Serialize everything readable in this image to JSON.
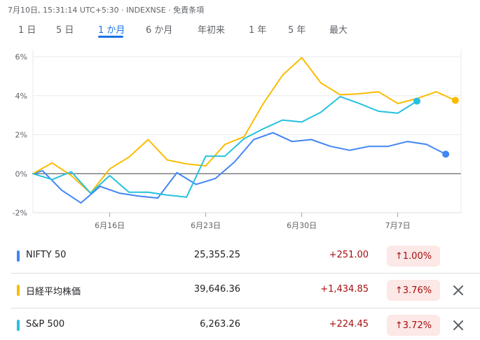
{
  "header": {
    "timestamp": "7月10日, 15:31:14 UTC+5:30 · INDEXNSE · 免責条項"
  },
  "tabs": [
    {
      "label": "1 日",
      "active": false
    },
    {
      "label": "5 日",
      "active": false
    },
    {
      "label": "1 か月",
      "active": true
    },
    {
      "label": "6 か月",
      "active": false
    },
    {
      "label": "年初来",
      "active": false
    },
    {
      "label": "1 年",
      "active": false
    },
    {
      "label": "5 年",
      "active": false
    },
    {
      "label": "最大",
      "active": false
    }
  ],
  "chart_data": {
    "type": "line",
    "ylabel_unit": "%",
    "y_ticks": [
      "6%",
      "4%",
      "2%",
      "0%",
      "-2%"
    ],
    "y_tick_values": [
      6,
      4,
      2,
      0,
      -2
    ],
    "ylim": [
      -2,
      6
    ],
    "x_ticks": [
      "6月16日",
      "6月23日",
      "6月30日",
      "7月7日"
    ],
    "x_tick_index": [
      4,
      9,
      14,
      19
    ],
    "grid": true,
    "zero_line": true,
    "series": [
      {
        "name": "NIFTY 50",
        "color": "#4285f4",
        "values": [
          0,
          0.15,
          -0.85,
          -1.5,
          -0.65,
          -1.0,
          -1.15,
          -1.25,
          0.05,
          -0.55,
          -0.25,
          0.6,
          1.75,
          2.1,
          1.65,
          1.75,
          1.4,
          1.2,
          1.4,
          1.4,
          1.65,
          1.5,
          1.0
        ],
        "x_index": [
          0,
          0.5,
          1.5,
          2.5,
          3.5,
          4.5,
          5.5,
          6.5,
          7.5,
          8.5,
          9.5,
          10.5,
          11.5,
          12.5,
          13.5,
          14.5,
          15.5,
          16.5,
          17.5,
          18.5,
          19.5,
          20.5,
          21.5
        ]
      },
      {
        "name": "日経平均株価",
        "color": "#fbbc04",
        "values": [
          0,
          0.55,
          -0.1,
          -1.0,
          0.25,
          0.85,
          1.75,
          0.7,
          0.5,
          0.4,
          1.5,
          1.9,
          3.6,
          5.05,
          5.95,
          4.65,
          4.05,
          4.1,
          4.2,
          3.6,
          3.85,
          4.2,
          3.76
        ],
        "x_index": [
          0,
          1,
          2,
          3,
          4,
          5,
          6,
          7,
          8,
          9,
          10,
          11,
          12,
          13,
          14,
          15,
          16,
          17,
          18,
          19,
          20,
          21,
          22
        ]
      },
      {
        "name": "S&P 500",
        "color": "#24c1e0",
        "values": [
          0,
          -0.3,
          0.1,
          -1.0,
          -0.1,
          -0.95,
          -0.95,
          -1.1,
          -1.2,
          0.9,
          0.9,
          1.8,
          2.3,
          2.75,
          2.65,
          3.15,
          3.95,
          3.6,
          3.2,
          3.1,
          3.72
        ],
        "x_index": [
          0,
          1,
          2,
          3,
          4,
          5,
          6,
          7,
          8,
          9,
          10,
          11,
          12,
          13,
          14,
          15,
          16,
          17,
          18,
          19,
          20
        ]
      }
    ]
  },
  "rows": [
    {
      "name": "NIFTY 50",
      "color": "#4285f4",
      "price": "25,355.25",
      "change": "+251.00",
      "pct": "↑1.00%",
      "removable": false
    },
    {
      "name": "日経平均株価",
      "color": "#fbbc04",
      "price": "39,646.36",
      "change": "+1,434.85",
      "pct": "↑3.76%",
      "removable": true
    },
    {
      "name": "S&P 500",
      "color": "#24c1e0",
      "price": "6,263.26",
      "change": "+224.45",
      "pct": "↑3.72%",
      "removable": true
    }
  ],
  "icons": {
    "close": "close-icon"
  }
}
